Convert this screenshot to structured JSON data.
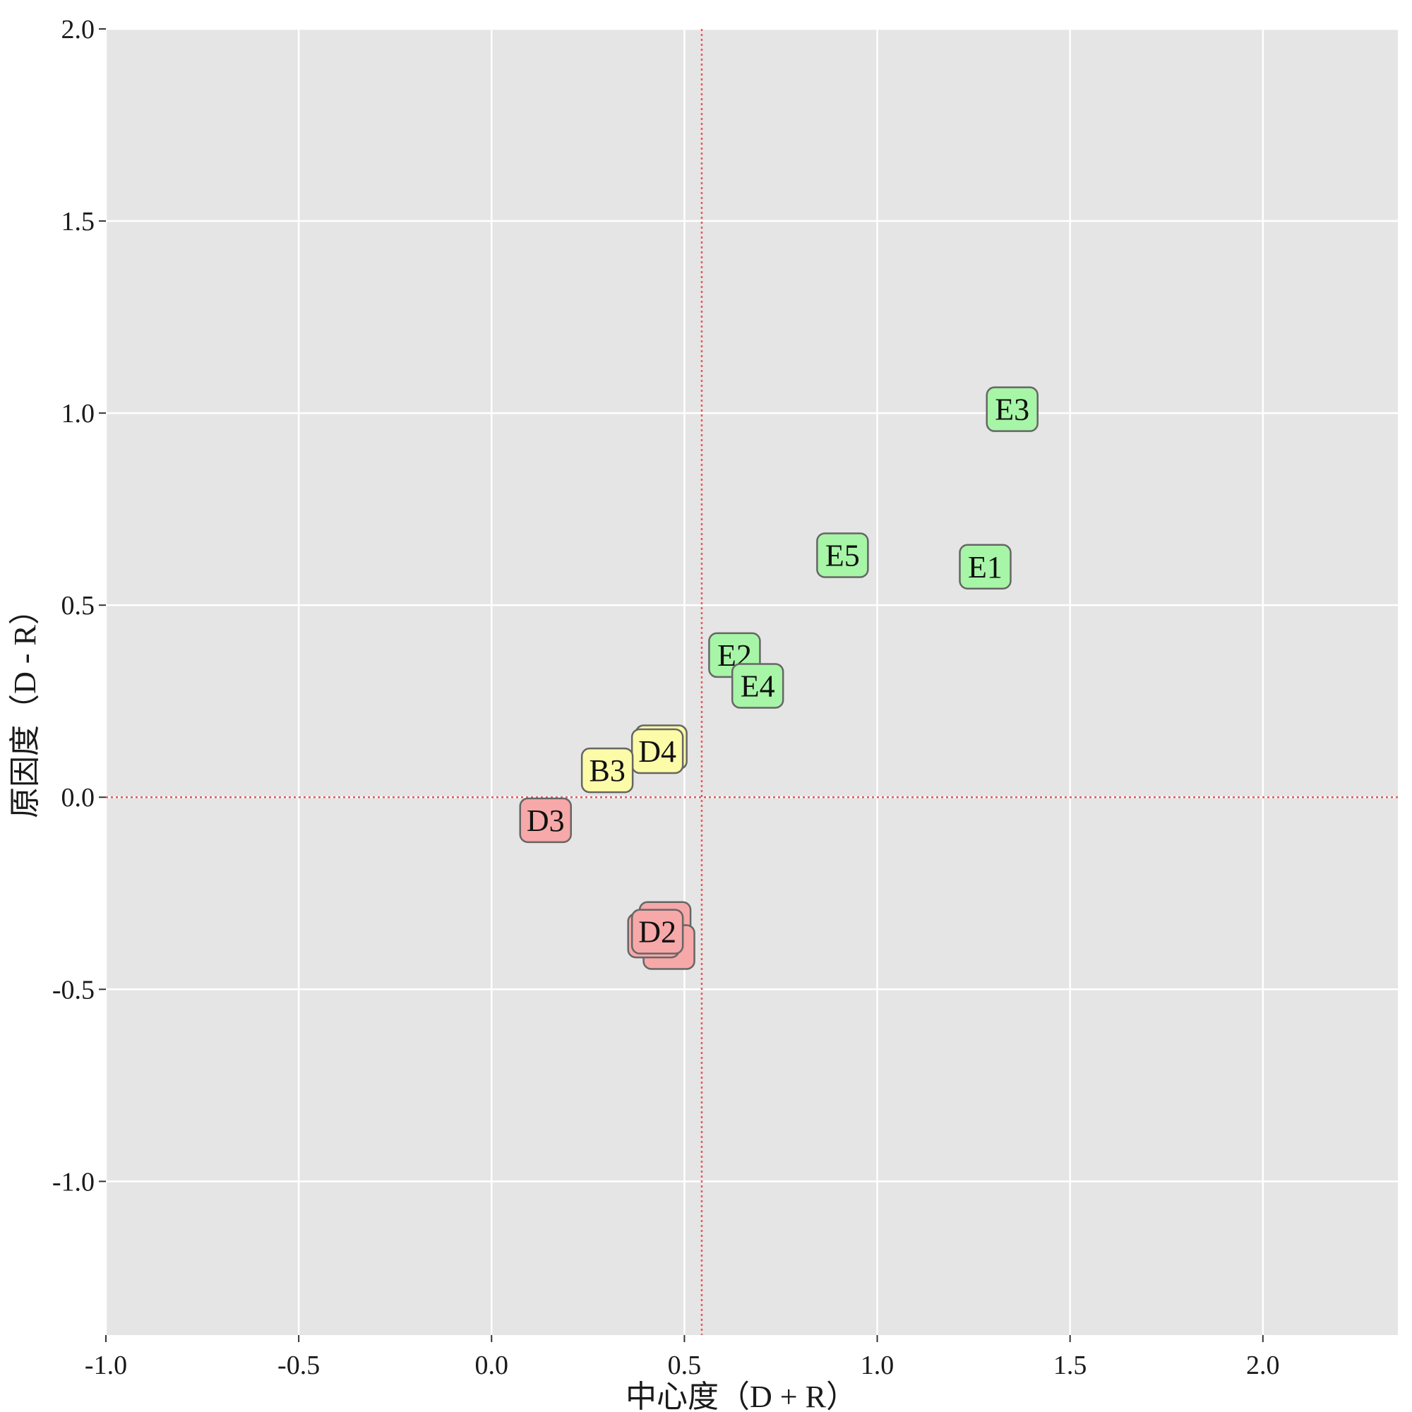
{
  "chart_data": {
    "type": "scatter",
    "title": "",
    "xlabel": "中心度（D + R）",
    "ylabel": "原因度（D - R）",
    "xlim": [
      -1.0,
      2.35
    ],
    "ylim": [
      -1.4,
      2.0
    ],
    "x_ticks": [
      -1.0,
      -0.5,
      0.0,
      0.5,
      1.0,
      1.5,
      2.0
    ],
    "x_tick_labels": [
      "-1.0",
      "-0.5",
      "0.0",
      "0.5",
      "1.0",
      "1.5",
      "2.0"
    ],
    "y_ticks": [
      -1.0,
      -0.5,
      0.0,
      0.5,
      1.0,
      1.5,
      2.0
    ],
    "y_tick_labels": [
      "-1.0",
      "-0.5",
      "0.0",
      "0.5",
      "1.0",
      "1.5",
      "2.0"
    ],
    "grid": true,
    "reference_lines": {
      "x": 0.545,
      "y": 0.0,
      "color": "#e8585f",
      "style": "dotted"
    },
    "groups": [
      {
        "name": "cause-green",
        "fill": "#a7f5a7"
      },
      {
        "name": "mid-yellow",
        "fill": "#fcfca8"
      },
      {
        "name": "effect-red",
        "fill": "#f7a8a8"
      }
    ],
    "points": [
      {
        "label": "E3",
        "x": 1.35,
        "y": 1.01,
        "group": "cause-green"
      },
      {
        "label": "E5",
        "x": 0.91,
        "y": 0.63,
        "group": "cause-green"
      },
      {
        "label": "E1",
        "x": 1.28,
        "y": 0.6,
        "group": "cause-green"
      },
      {
        "label": "E2",
        "x": 0.63,
        "y": 0.37,
        "group": "cause-green"
      },
      {
        "label": "E4",
        "x": 0.69,
        "y": 0.29,
        "group": "cause-green"
      },
      {
        "label": "",
        "x": 0.44,
        "y": 0.13,
        "group": "mid-yellow"
      },
      {
        "label": "D4",
        "x": 0.43,
        "y": 0.12,
        "group": "mid-yellow"
      },
      {
        "label": "B3",
        "x": 0.3,
        "y": 0.07,
        "group": "mid-yellow"
      },
      {
        "label": "D3",
        "x": 0.14,
        "y": -0.06,
        "group": "effect-red"
      },
      {
        "label": "",
        "x": 0.45,
        "y": -0.33,
        "group": "effect-red"
      },
      {
        "label": "",
        "x": 0.46,
        "y": -0.39,
        "group": "effect-red"
      },
      {
        "label": "",
        "x": 0.42,
        "y": -0.36,
        "group": "effect-red"
      },
      {
        "label": "D2",
        "x": 0.43,
        "y": -0.35,
        "group": "effect-red"
      }
    ]
  }
}
